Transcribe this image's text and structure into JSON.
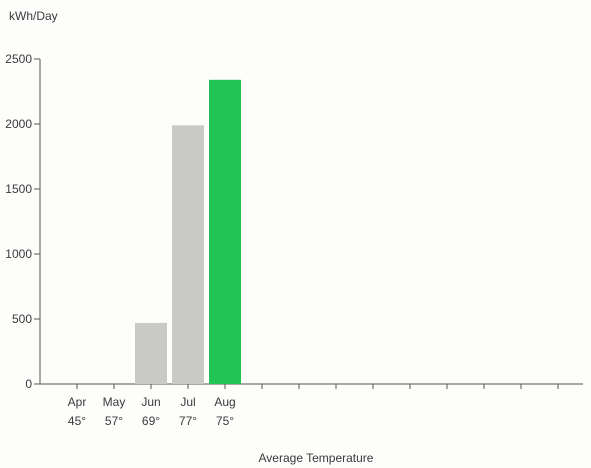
{
  "chart_data": {
    "type": "bar",
    "ylabel": "kWh/Day",
    "xlabel": "Average Temperature",
    "ylim": [
      0,
      2500
    ],
    "yticks": [
      0,
      500,
      1000,
      1500,
      2000,
      2500
    ],
    "categories": [
      "Apr",
      "May",
      "Jun",
      "Jul",
      "Aug"
    ],
    "temperatures": [
      "45°",
      "57°",
      "69°",
      "77°",
      "75°"
    ],
    "values": [
      0,
      0,
      470,
      1990,
      2340
    ],
    "bar_colors": [
      "#c9c9c6",
      "#c9c9c6",
      "#c9c9c6",
      "#c9c9c6",
      "#22c456"
    ],
    "highlight_index": 4,
    "extra_x_ticks": 14,
    "grid": false,
    "legend": "none"
  }
}
